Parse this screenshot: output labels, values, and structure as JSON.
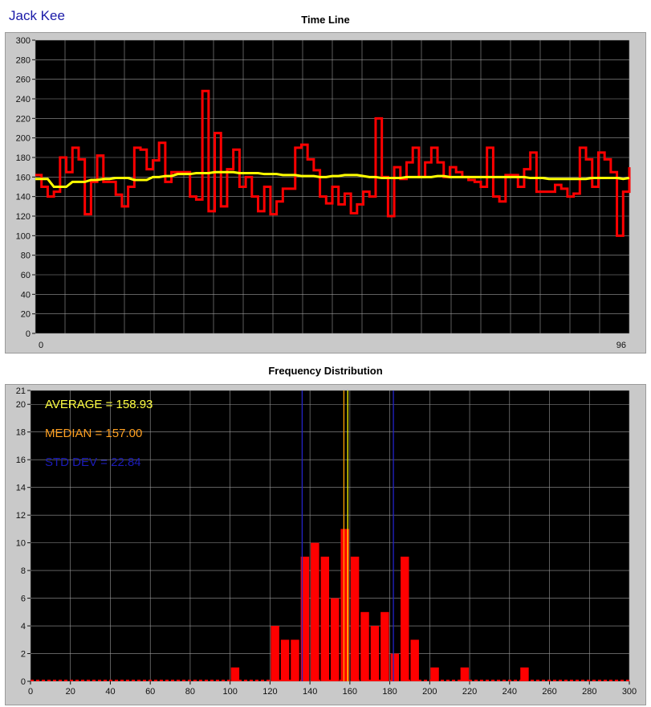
{
  "header": {
    "user_name": "Jack Kee"
  },
  "chart_data": [
    {
      "type": "line",
      "title": "Time Line",
      "xlim": [
        0,
        96
      ],
      "x_tick_labels": [
        "0",
        "96"
      ],
      "ylim": [
        0,
        300
      ],
      "y_ticks": [
        0,
        20,
        40,
        60,
        80,
        100,
        120,
        140,
        160,
        180,
        200,
        220,
        240,
        260,
        280,
        300
      ],
      "grid": true,
      "background": "#000000",
      "series": [
        {
          "color": "#ff0000",
          "step": true,
          "values": [
            162,
            150,
            140,
            145,
            180,
            165,
            190,
            178,
            122,
            155,
            182,
            155,
            155,
            142,
            130,
            150,
            190,
            188,
            168,
            177,
            195,
            155,
            165,
            165,
            165,
            140,
            137,
            248,
            125,
            205,
            130,
            168,
            188,
            150,
            160,
            140,
            125,
            150,
            122,
            135,
            148,
            148,
            190,
            193,
            178,
            167,
            140,
            133,
            150,
            132,
            143,
            123,
            132,
            145,
            140,
            220,
            160,
            120,
            170,
            158,
            175,
            190,
            160,
            175,
            190,
            175,
            160,
            170,
            165,
            160,
            157,
            155,
            150,
            190,
            140,
            135,
            162,
            162,
            150,
            168,
            185,
            145,
            145,
            145,
            152,
            148,
            140,
            143,
            190,
            178,
            150,
            185,
            178,
            165,
            100,
            145,
            170
          ]
        },
        {
          "color": "#ffff00",
          "step": false,
          "values": [
            158,
            158,
            158,
            150,
            150,
            150,
            155,
            155,
            155,
            157,
            157,
            158,
            158,
            159,
            159,
            159,
            157,
            157,
            157,
            160,
            160,
            161,
            161,
            163,
            163,
            163,
            164,
            164,
            164,
            165,
            165,
            165,
            165,
            164,
            164,
            164,
            164,
            163,
            163,
            163,
            162,
            162,
            162,
            161,
            161,
            161,
            160,
            160,
            161,
            161,
            162,
            162,
            162,
            161,
            160,
            160,
            159,
            159,
            159,
            159,
            160,
            160,
            160,
            160,
            160,
            161,
            161,
            160,
            160,
            160,
            160,
            160,
            160,
            160,
            160,
            160,
            160,
            160,
            160,
            160,
            159,
            159,
            159,
            158,
            158,
            158,
            158,
            158,
            158,
            158,
            159,
            159,
            159,
            159,
            159,
            158,
            159
          ]
        }
      ]
    },
    {
      "type": "bar",
      "title": "Frequency Distribution",
      "xlim": [
        0,
        300
      ],
      "x_ticks": [
        0,
        20,
        40,
        60,
        80,
        100,
        120,
        140,
        160,
        180,
        200,
        220,
        240,
        260,
        280,
        300
      ],
      "ylim": [
        0,
        21
      ],
      "y_ticks": [
        0,
        2,
        4,
        6,
        8,
        10,
        12,
        14,
        16,
        18,
        20,
        21
      ],
      "grid": true,
      "background": "#000000",
      "bar_color": "#ff0000",
      "bins": [
        {
          "x": 102.5,
          "y": 1
        },
        {
          "x": 122.5,
          "y": 4
        },
        {
          "x": 127.5,
          "y": 3
        },
        {
          "x": 132.5,
          "y": 3
        },
        {
          "x": 137.5,
          "y": 9
        },
        {
          "x": 142.5,
          "y": 10
        },
        {
          "x": 147.5,
          "y": 9
        },
        {
          "x": 152.5,
          "y": 6
        },
        {
          "x": 157.5,
          "y": 11
        },
        {
          "x": 162.5,
          "y": 9
        },
        {
          "x": 167.5,
          "y": 5
        },
        {
          "x": 172.5,
          "y": 4
        },
        {
          "x": 177.5,
          "y": 5
        },
        {
          "x": 182.5,
          "y": 2
        },
        {
          "x": 187.5,
          "y": 9
        },
        {
          "x": 192.5,
          "y": 3
        },
        {
          "x": 202.5,
          "y": 1
        },
        {
          "x": 217.5,
          "y": 1
        },
        {
          "x": 247.5,
          "y": 1
        }
      ],
      "marker_lines": [
        {
          "x": 136.1,
          "color": "#2323c8"
        },
        {
          "x": 157.0,
          "color": "#ffa500"
        },
        {
          "x": 158.93,
          "color": "#ffff00"
        },
        {
          "x": 181.8,
          "color": "#2323c8"
        }
      ],
      "annotations": [
        {
          "text": "AVERAGE = 158.93",
          "color": "#ffff40"
        },
        {
          "text": "MEDIAN = 157.00",
          "color": "#ffa020"
        },
        {
          "text": "STD DEV = 22.84",
          "color": "#1c1cb8"
        }
      ]
    }
  ]
}
